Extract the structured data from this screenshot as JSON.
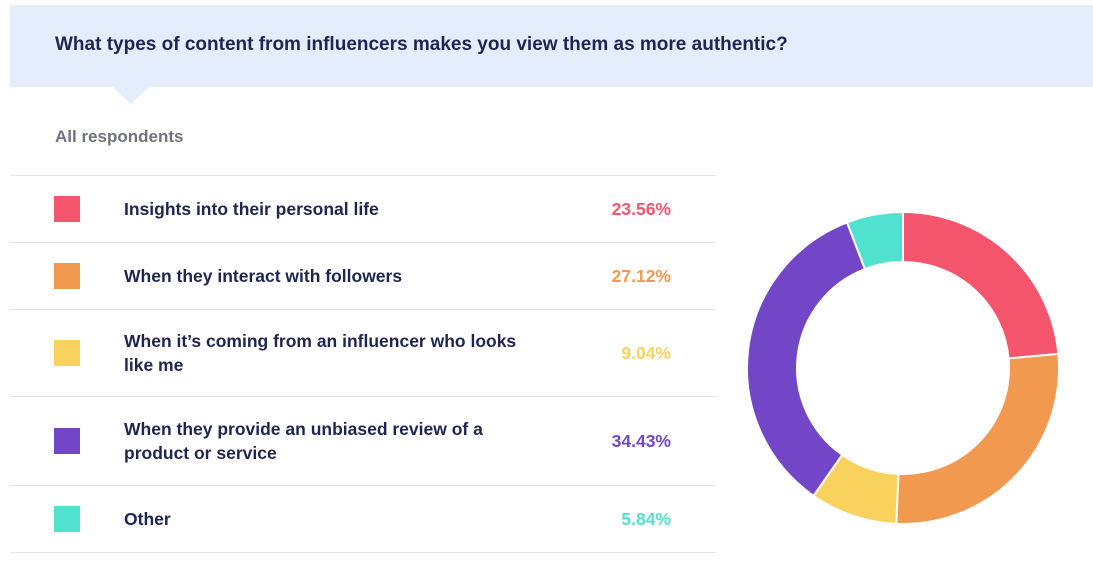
{
  "header": {
    "title": "What types of content from influencers makes you view them as more authentic?"
  },
  "subtitle": "All respondents",
  "chart_data": {
    "type": "pie",
    "title": "What types of content from influencers makes you view them as more authentic?",
    "subtitle": "All respondents",
    "categories": [
      "Insights into their personal life",
      "When they interact with followers",
      "When it’s coming from an influencer who looks like me",
      "When they provide an unbiased review of a product or service",
      "Other"
    ],
    "values": [
      23.56,
      27.12,
      9.04,
      34.43,
      5.84
    ],
    "value_labels": [
      "23.56%",
      "27.12%",
      "9.04%",
      "34.43%",
      "5.84%"
    ],
    "colors": [
      "#f5546d",
      "#f19a4f",
      "#f8d25c",
      "#7346c8",
      "#50e2cf"
    ],
    "donut": true
  }
}
